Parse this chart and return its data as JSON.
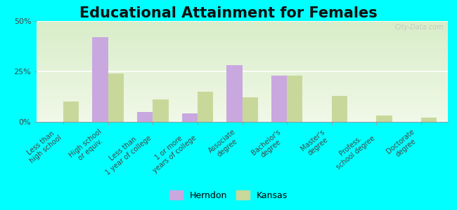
{
  "title": "Educational Attainment for Females",
  "categories": [
    "Less than\nhigh school",
    "High school\nor equiv.",
    "Less than\n1 year of college",
    "1 or more\nyears of college",
    "Associate\ndegree",
    "Bachelor's\ndegree",
    "Master's\ndegree",
    "Profess.\nschool degree",
    "Doctorate\ndegree"
  ],
  "herndon": [
    0,
    42,
    5,
    4,
    28,
    23,
    0,
    0,
    0
  ],
  "kansas": [
    10,
    24,
    11,
    15,
    12,
    23,
    13,
    3,
    2
  ],
  "herndon_color": "#c9a8e0",
  "kansas_color": "#c8d89a",
  "background_color": "#00ffff",
  "ylim": [
    0,
    50
  ],
  "yticks": [
    0,
    25,
    50
  ],
  "ytick_labels": [
    "0%",
    "25%",
    "50%"
  ],
  "bar_width": 0.35,
  "title_fontsize": 15,
  "tick_fontsize": 7,
  "legend_fontsize": 9,
  "watermark": "City-Data.com"
}
